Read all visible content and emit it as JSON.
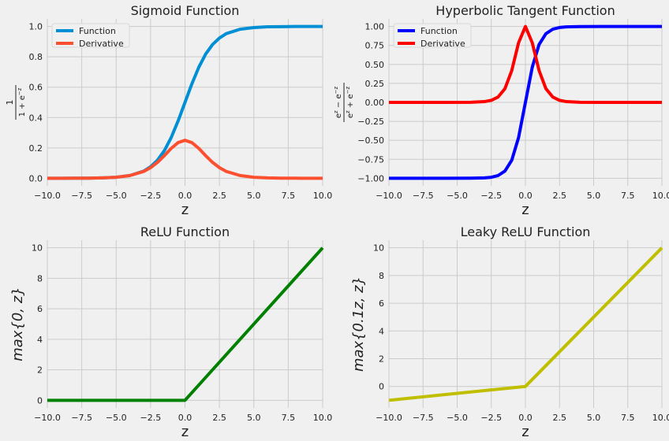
{
  "figure": {
    "background": "#f0f0f0",
    "plot_background": "#f0f0f0",
    "grid_color": "#cbcbcb"
  },
  "chart_data": [
    {
      "type": "line",
      "title": "Sigmoid Function",
      "xlabel": "z",
      "ylabel_tex": "1 / (1 + e^{-z})",
      "xlim": [
        -10.0,
        10.0
      ],
      "ylim": [
        -0.05,
        1.05
      ],
      "xticks": [
        -10.0,
        -7.5,
        -5.0,
        -2.5,
        0.0,
        2.5,
        5.0,
        7.5,
        10.0
      ],
      "xtick_labels": [
        "−10.0",
        "−7.5",
        "−5.0",
        "−2.5",
        "0.0",
        "2.5",
        "5.0",
        "7.5",
        "10.0"
      ],
      "yticks": [
        0.0,
        0.2,
        0.4,
        0.6,
        0.8,
        1.0
      ],
      "ytick_labels": [
        "0.0",
        "0.2",
        "0.4",
        "0.6",
        "0.8",
        "1.0"
      ],
      "grid": true,
      "legend": "top-left",
      "series": [
        {
          "name": "Function",
          "color": "#008fd5",
          "x": [
            -10,
            -9,
            -8,
            -7,
            -6,
            -5,
            -4,
            -3,
            -2.5,
            -2,
            -1.5,
            -1,
            -0.5,
            0,
            0.5,
            1,
            1.5,
            2,
            2.5,
            3,
            4,
            5,
            6,
            7,
            8,
            9,
            10
          ],
          "y": [
            0.0,
            0.0001,
            0.0003,
            0.0009,
            0.0025,
            0.0067,
            0.018,
            0.047,
            0.076,
            0.119,
            0.182,
            0.269,
            0.378,
            0.5,
            0.622,
            0.731,
            0.818,
            0.881,
            0.924,
            0.953,
            0.982,
            0.993,
            0.998,
            0.999,
            1.0,
            1.0,
            1.0
          ]
        },
        {
          "name": "Derivative",
          "color": "#fc4f30",
          "x": [
            -10,
            -9,
            -8,
            -7,
            -6,
            -5,
            -4,
            -3,
            -2.5,
            -2,
            -1.5,
            -1,
            -0.5,
            0,
            0.5,
            1,
            1.5,
            2,
            2.5,
            3,
            4,
            5,
            6,
            7,
            8,
            9,
            10
          ],
          "y": [
            0.0,
            0.0001,
            0.0003,
            0.0009,
            0.0025,
            0.0066,
            0.018,
            0.045,
            0.07,
            0.105,
            0.149,
            0.197,
            0.235,
            0.25,
            0.235,
            0.197,
            0.149,
            0.105,
            0.07,
            0.045,
            0.018,
            0.0066,
            0.0025,
            0.0009,
            0.0003,
            0.0001,
            0.0
          ]
        }
      ]
    },
    {
      "type": "line",
      "title": "Hyperbolic Tangent Function",
      "xlabel": "z",
      "ylabel_tex": "(e^{z} - e^{-z}) / (e^{z} + e^{-z})",
      "xlim": [
        -10.0,
        10.0
      ],
      "ylim": [
        -1.1,
        1.1
      ],
      "xticks": [
        -10.0,
        -7.5,
        -5.0,
        -2.5,
        0.0,
        2.5,
        5.0,
        7.5,
        10.0
      ],
      "xtick_labels": [
        "−10.0",
        "−7.5",
        "−5.0",
        "−2.5",
        "0.0",
        "2.5",
        "5.0",
        "7.5",
        "10.0"
      ],
      "yticks": [
        -1.0,
        -0.75,
        -0.5,
        -0.25,
        0.0,
        0.25,
        0.5,
        0.75,
        1.0
      ],
      "ytick_labels": [
        "−1.00",
        "−0.75",
        "−0.50",
        "−0.25",
        "0.00",
        "0.25",
        "0.50",
        "0.75",
        "1.00"
      ],
      "grid": true,
      "legend": "top-left",
      "series": [
        {
          "name": "Function",
          "color": "#0000ff",
          "x": [
            -10,
            -8,
            -6,
            -4,
            -3,
            -2.5,
            -2,
            -1.5,
            -1,
            -0.5,
            0,
            0.5,
            1,
            1.5,
            2,
            2.5,
            3,
            4,
            6,
            8,
            10
          ],
          "y": [
            -1.0,
            -1.0,
            -1.0,
            -0.999,
            -0.995,
            -0.987,
            -0.964,
            -0.905,
            -0.762,
            -0.462,
            0.0,
            0.462,
            0.762,
            0.905,
            0.964,
            0.987,
            0.995,
            0.999,
            1.0,
            1.0,
            1.0
          ]
        },
        {
          "name": "Derivative",
          "color": "#ff0000",
          "x": [
            -10,
            -8,
            -6,
            -4,
            -3,
            -2.5,
            -2,
            -1.5,
            -1,
            -0.5,
            0,
            0.5,
            1,
            1.5,
            2,
            2.5,
            3,
            4,
            6,
            8,
            10
          ],
          "y": [
            0.0,
            0.0,
            0.0,
            0.001,
            0.01,
            0.027,
            0.071,
            0.181,
            0.42,
            0.786,
            1.0,
            0.786,
            0.42,
            0.181,
            0.071,
            0.027,
            0.01,
            0.001,
            0.0,
            0.0,
            0.0
          ]
        }
      ]
    },
    {
      "type": "line",
      "title": "ReLU Function",
      "xlabel": "z",
      "ylabel_tex": "max{0, z}",
      "xlim": [
        -10.0,
        10.0
      ],
      "ylim": [
        -0.5,
        10.5
      ],
      "xticks": [
        -10.0,
        -7.5,
        -5.0,
        -2.5,
        0.0,
        2.5,
        5.0,
        7.5,
        10.0
      ],
      "xtick_labels": [
        "−10.0",
        "−7.5",
        "−5.0",
        "−2.5",
        "0.0",
        "2.5",
        "5.0",
        "7.5",
        "10.0"
      ],
      "yticks": [
        0,
        2,
        4,
        6,
        8,
        10
      ],
      "ytick_labels": [
        "0",
        "2",
        "4",
        "6",
        "8",
        "10"
      ],
      "grid": true,
      "series": [
        {
          "color": "#008000",
          "x": [
            -10,
            0,
            10
          ],
          "y": [
            0,
            0,
            10
          ]
        }
      ]
    },
    {
      "type": "line",
      "title": "Leaky ReLU Function",
      "xlabel": "z",
      "ylabel_tex": "max{0.1z, z}",
      "xlim": [
        -10.0,
        10.0
      ],
      "ylim": [
        -1.55,
        10.55
      ],
      "xticks": [
        -10.0,
        -7.5,
        -5.0,
        -2.5,
        0.0,
        2.5,
        5.0,
        7.5,
        10.0
      ],
      "xtick_labels": [
        "−10.0",
        "−7.5",
        "−5.0",
        "−2.5",
        "0.0",
        "2.5",
        "5.0",
        "7.5",
        "10.0"
      ],
      "yticks": [
        0,
        2,
        4,
        6,
        8,
        10
      ],
      "ytick_labels": [
        "0",
        "2",
        "4",
        "6",
        "8",
        "10"
      ],
      "grid": true,
      "series": [
        {
          "color": "#bfbf00",
          "x": [
            -10,
            0,
            10
          ],
          "y": [
            -1,
            0,
            10
          ]
        }
      ]
    }
  ]
}
